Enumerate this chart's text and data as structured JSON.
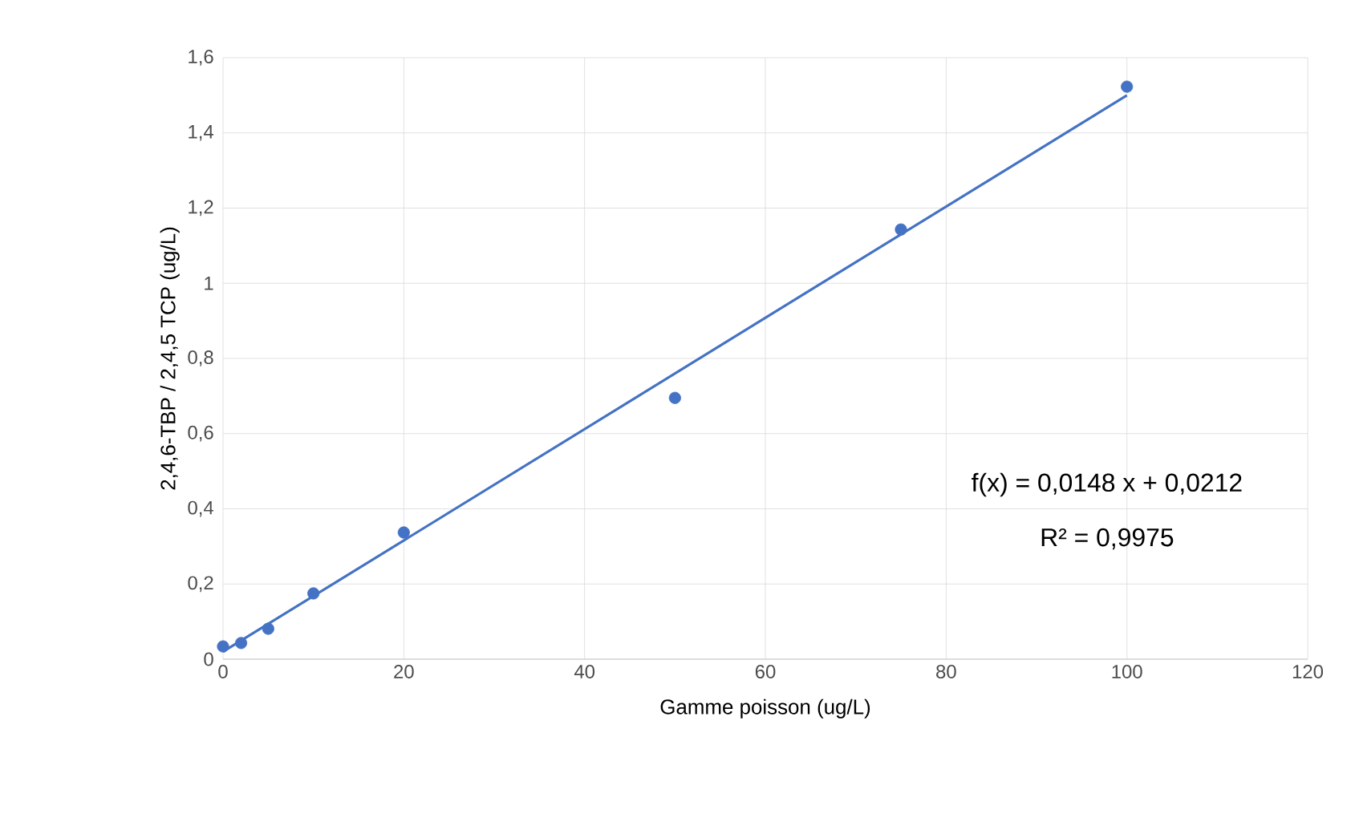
{
  "chart_data": {
    "type": "scatter",
    "xlabel": "Gamme poisson (ug/L)",
    "ylabel": "2,4,6-TBP / 2,4,5 TCP (ug/L)",
    "x": [
      0,
      2,
      5,
      10,
      20,
      50,
      75,
      100
    ],
    "series": [
      {
        "color": "#4472c4",
        "marker": "circle",
        "values": [
          0.034,
          0.043,
          0.081,
          0.175,
          0.337,
          0.695,
          1.143,
          1.523
        ]
      },
      {
        "type": "line",
        "color": "#4472c4",
        "marker": "none",
        "line_style": "solid",
        "x": [
          0,
          100
        ],
        "values": [
          0.02,
          1.5
        ]
      }
    ],
    "xlim": [
      0,
      120
    ],
    "xticks": [
      0,
      20,
      40,
      60,
      80,
      100,
      120
    ],
    "ylim": [
      0,
      1.6
    ],
    "yticks": [
      0,
      {
        "value": 0.2,
        "label": "0,2"
      },
      {
        "value": 0.4,
        "label": "0,4"
      },
      {
        "value": 0.6,
        "label": "0,6"
      },
      {
        "value": 0.8,
        "label": "0,8"
      },
      1,
      {
        "value": 1.2,
        "label": "1,2"
      },
      {
        "value": 1.4,
        "label": "1,4"
      },
      {
        "value": 1.6,
        "label": "1,6"
      }
    ],
    "grid": true,
    "annotations": [
      "f(x) = 0,0148 x + 0,0212",
      "R² = 0,9975"
    ]
  }
}
